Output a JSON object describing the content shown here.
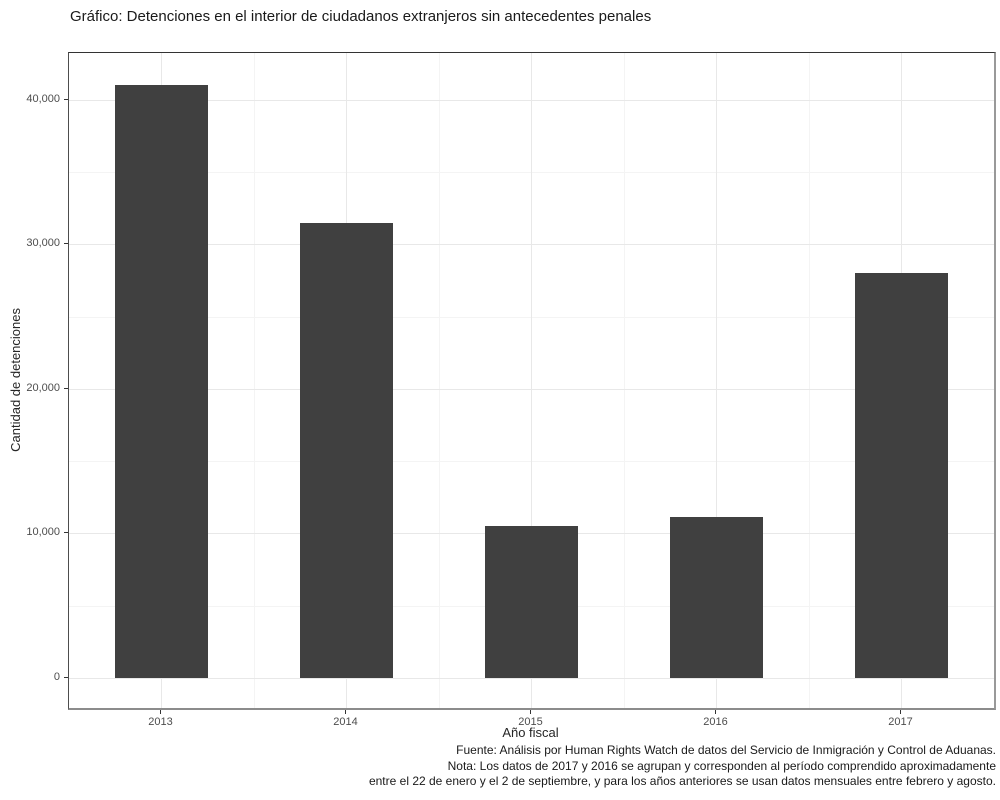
{
  "chart_data": {
    "type": "bar",
    "title": "Gráfico: Detenciones en el interior de ciudadanos extranjeros sin antecedentes penales",
    "xlabel": "Año fiscal",
    "ylabel": "Cantidad de detenciones",
    "categories": [
      "2013",
      "2014",
      "2015",
      "2016",
      "2017"
    ],
    "values": [
      41000,
      31500,
      10500,
      11100,
      28000
    ],
    "ylim": [
      0,
      43200
    ],
    "yticks": [
      0,
      10000,
      20000,
      30000,
      40000
    ],
    "ytick_labels": [
      "0",
      "10,000",
      "20,000",
      "30,000",
      "40,000"
    ],
    "yticks_minor": [
      5000,
      15000,
      25000,
      35000
    ],
    "grid": "major and minor, light gray, horizontal and vertical",
    "legend": "none",
    "bar_color": "#404040",
    "background_color": "#ffffff",
    "caption_lines": [
      "Fuente: Análisis por Human Rights Watch de datos del Servicio de Inmigración y Control de Aduanas.",
      "Nota: Los datos de 2017 y 2016 se agrupan y corresponden al período comprendido aproximadamente",
      "entre el 22 de enero y el 2 de septiembre, y para los años anteriores se usan datos mensuales entre febrero y agosto."
    ]
  }
}
